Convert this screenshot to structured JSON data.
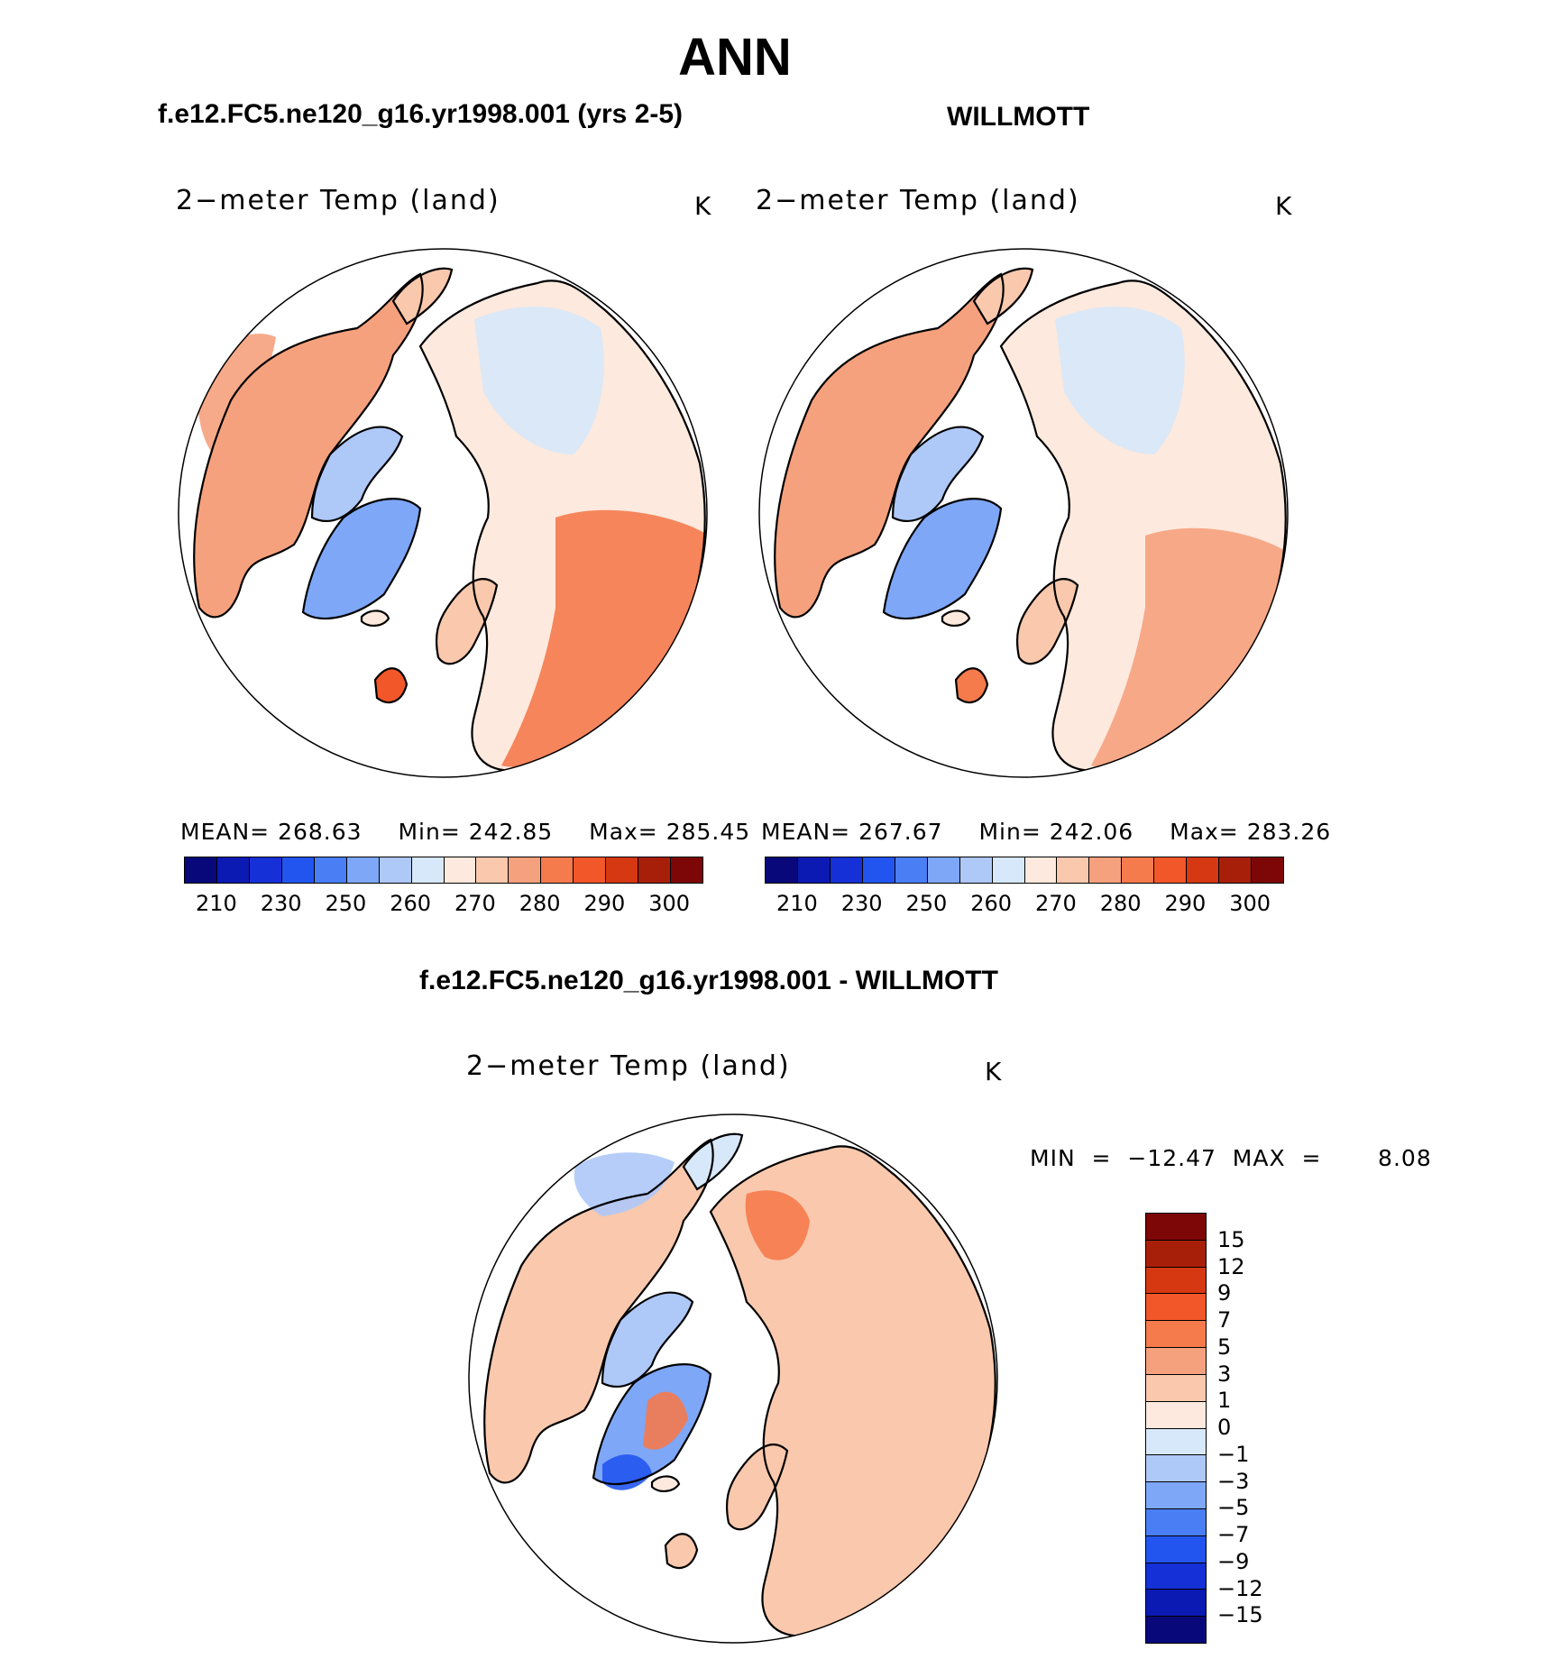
{
  "title": "ANN",
  "colors": {
    "abs_levels": [
      "#08087a",
      "#0b1ab3",
      "#1430d6",
      "#2255f0",
      "#4a7ef5",
      "#7ea7f7",
      "#aec8f8",
      "#d7e8fa",
      "#fde9dd",
      "#f9c8ad",
      "#f6a17d",
      "#f57a4c",
      "#f2572a",
      "#d63811",
      "#a81f09",
      "#7d0606"
    ],
    "diff_levels": [
      "#08087a",
      "#0b1ab3",
      "#1430d6",
      "#2255f0",
      "#4a7ef5",
      "#7ea7f7",
      "#aec8f8",
      "#d7e8fa",
      "#fde9dd",
      "#f9c8ad",
      "#f6a17d",
      "#f57a4c",
      "#f2572a",
      "#d63811",
      "#a81f09",
      "#7d0606"
    ]
  },
  "panels": [
    {
      "title": "f.e12.FC5.ne120_g16.yr1998.001 (yrs 2-5)",
      "variable": "2−meter Temp (land)",
      "units": "K",
      "stats": {
        "mean_label": "MEAN=",
        "mean": "268.63",
        "min_label": "Min=",
        "min": "242.85",
        "max_label": "Max=",
        "max": "285.45"
      },
      "colorbar_ticks": [
        "210",
        "230",
        "250",
        "260",
        "270",
        "280",
        "290",
        "300"
      ]
    },
    {
      "title": "WILLMOTT",
      "variable": "2−meter Temp (land)",
      "units": "K",
      "stats": {
        "mean_label": "MEAN=",
        "mean": "267.67",
        "min_label": "Min=",
        "min": "242.06",
        "max_label": "Max=",
        "max": "283.26"
      },
      "colorbar_ticks": [
        "210",
        "230",
        "250",
        "260",
        "270",
        "280",
        "290",
        "300"
      ]
    },
    {
      "title": "f.e12.FC5.ne120_g16.yr1998.001 - WILLMOTT",
      "variable": "2−meter Temp (land)",
      "units": "K",
      "minmax": "MIN  =  −12.47  MAX  =       8.08",
      "colorbar_ticks": [
        "−15",
        "−12",
        "−9",
        "−7",
        "−5",
        "−3",
        "−1",
        "0",
        "1",
        "3",
        "5",
        "7",
        "9",
        "12",
        "15"
      ]
    }
  ]
}
